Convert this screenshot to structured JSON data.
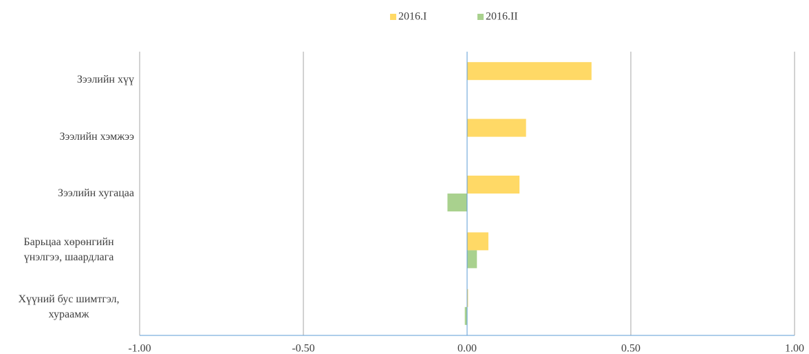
{
  "chart_data": {
    "type": "bar",
    "orientation": "horizontal",
    "categories": [
      "Зээлийн хүү",
      "Зээлийн хэмжээ",
      "Зээлийн хугацаа",
      "Барьцаа хөрөнгийн үнэлгээ, шаардлага",
      "Хүүний бус шимтгэл, хураамж"
    ],
    "series": [
      {
        "name": "2016.I",
        "color": "#ffd966",
        "values": [
          0.38,
          0.18,
          0.16,
          0.065,
          0.003
        ]
      },
      {
        "name": "2016.II",
        "color": "#a9d18e",
        "values": [
          0,
          0,
          -0.06,
          0.03,
          -0.007
        ]
      }
    ],
    "xlim": [
      -1,
      1
    ],
    "xticks": [
      {
        "value": -1,
        "label": "-1.00"
      },
      {
        "value": -0.5,
        "label": "-0.50"
      },
      {
        "value": 0,
        "label": "0.00"
      },
      {
        "value": 0.5,
        "label": "0.50"
      },
      {
        "value": 1,
        "label": "1.00"
      }
    ],
    "grid": true,
    "legend": "top"
  }
}
